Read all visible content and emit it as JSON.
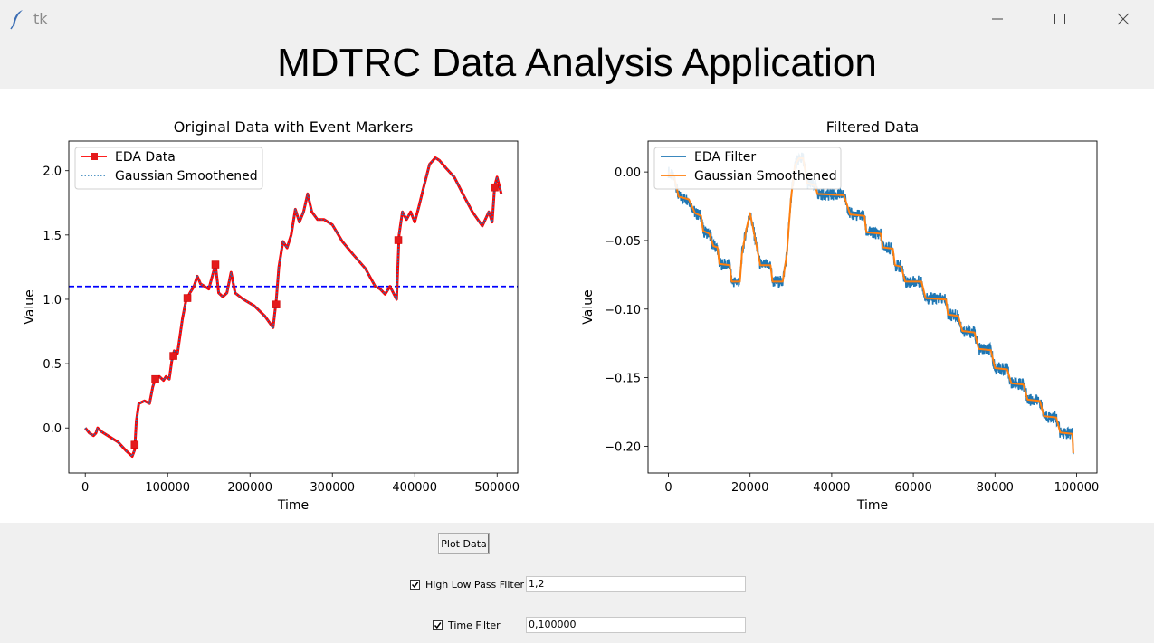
{
  "window": {
    "title": "tk",
    "icon": "feather-icon",
    "controls": [
      "minimize-icon",
      "maximize-icon",
      "close-icon"
    ]
  },
  "app_title": "MDTRC Data Analysis Application",
  "controls": {
    "plot_button": "Plot Data",
    "high_low_filter": {
      "label": "High Low Pass Filter",
      "checked": true,
      "value": "1,2"
    },
    "time_filter": {
      "label": "Time Filter",
      "checked": true,
      "value": "0,100000"
    }
  },
  "chart_data": [
    {
      "type": "line",
      "title": "Original Data with Event Markers",
      "xlabel": "Time",
      "ylabel": "Value",
      "xlim": [
        -20000,
        525000
      ],
      "ylim": [
        -0.35,
        2.23
      ],
      "xticks": [
        0,
        100000,
        200000,
        300000,
        400000,
        500000
      ],
      "xtick_labels": [
        "0",
        "100000",
        "200000",
        "300000",
        "400000",
        "500000"
      ],
      "yticks": [
        0.0,
        0.5,
        1.0,
        1.5,
        2.0
      ],
      "ytick_labels": [
        "0.0",
        "0.5",
        "1.0",
        "1.5",
        "2.0"
      ],
      "legend_position": "upper-left",
      "hline": {
        "y": 1.1,
        "color": "#0000ff",
        "style": "dashed"
      },
      "series": [
        {
          "name": "EDA Data",
          "color": "#ff0000",
          "marker": "square",
          "points": [
            [
              0,
              0.0
            ],
            [
              5000,
              -0.04
            ],
            [
              10000,
              -0.06
            ],
            [
              13000,
              -0.04
            ],
            [
              15000,
              0.0
            ],
            [
              20000,
              -0.03
            ],
            [
              30000,
              -0.07
            ],
            [
              40000,
              -0.11
            ],
            [
              50000,
              -0.18
            ],
            [
              57000,
              -0.22
            ],
            [
              60000,
              -0.17
            ],
            [
              62000,
              0.05
            ],
            [
              65000,
              0.19
            ],
            [
              72000,
              0.21
            ],
            [
              78000,
              0.19
            ],
            [
              82000,
              0.32
            ],
            [
              85000,
              0.38
            ],
            [
              90000,
              0.4
            ],
            [
              95000,
              0.37
            ],
            [
              98000,
              0.4
            ],
            [
              102000,
              0.38
            ],
            [
              105000,
              0.52
            ],
            [
              108000,
              0.6
            ],
            [
              112000,
              0.58
            ],
            [
              118000,
              0.85
            ],
            [
              122000,
              0.98
            ],
            [
              127000,
              1.05
            ],
            [
              132000,
              1.1
            ],
            [
              136000,
              1.18
            ],
            [
              140000,
              1.12
            ],
            [
              145000,
              1.1
            ],
            [
              150000,
              1.08
            ],
            [
              155000,
              1.2
            ],
            [
              158000,
              1.27
            ],
            [
              162000,
              1.05
            ],
            [
              167000,
              1.02
            ],
            [
              172000,
              1.05
            ],
            [
              177000,
              1.21
            ],
            [
              182000,
              1.05
            ],
            [
              192000,
              1.0
            ],
            [
              205000,
              0.95
            ],
            [
              218000,
              0.87
            ],
            [
              228000,
              0.78
            ],
            [
              232000,
              1.0
            ],
            [
              235000,
              1.25
            ],
            [
              240000,
              1.45
            ],
            [
              245000,
              1.4
            ],
            [
              250000,
              1.5
            ],
            [
              255000,
              1.7
            ],
            [
              260000,
              1.6
            ],
            [
              265000,
              1.68
            ],
            [
              270000,
              1.82
            ],
            [
              275000,
              1.68
            ],
            [
              282000,
              1.62
            ],
            [
              290000,
              1.62
            ],
            [
              300000,
              1.58
            ],
            [
              312000,
              1.45
            ],
            [
              325000,
              1.35
            ],
            [
              340000,
              1.24
            ],
            [
              352000,
              1.1
            ],
            [
              358000,
              1.08
            ],
            [
              364000,
              1.04
            ],
            [
              370000,
              1.1
            ],
            [
              378000,
              1.0
            ],
            [
              381000,
              1.5
            ],
            [
              385000,
              1.68
            ],
            [
              390000,
              1.62
            ],
            [
              395000,
              1.68
            ],
            [
              400000,
              1.6
            ],
            [
              405000,
              1.72
            ],
            [
              410000,
              1.85
            ],
            [
              418000,
              2.05
            ],
            [
              425000,
              2.1
            ],
            [
              430000,
              2.08
            ],
            [
              438000,
              2.02
            ],
            [
              448000,
              1.95
            ],
            [
              460000,
              1.8
            ],
            [
              470000,
              1.68
            ],
            [
              482000,
              1.57
            ],
            [
              490000,
              1.68
            ],
            [
              494000,
              1.6
            ],
            [
              497000,
              1.88
            ],
            [
              500000,
              1.95
            ],
            [
              505000,
              1.82
            ]
          ],
          "markers": [
            [
              60000,
              -0.13
            ],
            [
              85000,
              0.38
            ],
            [
              107000,
              0.56
            ],
            [
              124000,
              1.01
            ],
            [
              158000,
              1.27
            ],
            [
              232000,
              0.96
            ],
            [
              380000,
              1.46
            ],
            [
              497000,
              1.87
            ]
          ]
        },
        {
          "name": "Gaussian Smoothened",
          "color": "#1f77b4",
          "style": "dotted"
        }
      ]
    },
    {
      "type": "line",
      "title": "Filtered Data",
      "xlabel": "Time",
      "ylabel": "Value",
      "xlim": [
        -5000,
        105000
      ],
      "ylim": [
        -0.2195,
        0.0225
      ],
      "xticks": [
        0,
        20000,
        40000,
        60000,
        80000,
        100000
      ],
      "xtick_labels": [
        "0",
        "20000",
        "40000",
        "60000",
        "80000",
        "100000"
      ],
      "yticks": [
        0.0,
        -0.05,
        -0.1,
        -0.15,
        -0.2
      ],
      "ytick_labels": [
        "0.00",
        "−0.05",
        "−0.10",
        "−0.15",
        "−0.20"
      ],
      "legend_position": "upper-left",
      "series": [
        {
          "name": "EDA Filter",
          "color": "#1f77b4",
          "points": [
            [
              0,
              0.0
            ],
            [
              1500,
              -0.005
            ],
            [
              2500,
              -0.018
            ],
            [
              5000,
              -0.02
            ],
            [
              6500,
              -0.03
            ],
            [
              8000,
              -0.032
            ],
            [
              8500,
              -0.043
            ],
            [
              10000,
              -0.045
            ],
            [
              11000,
              -0.054
            ],
            [
              12000,
              -0.055
            ],
            [
              12500,
              -0.067
            ],
            [
              15000,
              -0.068
            ],
            [
              15500,
              -0.08
            ],
            [
              17500,
              -0.08
            ],
            [
              18000,
              -0.06
            ],
            [
              19000,
              -0.043
            ],
            [
              20000,
              -0.03
            ],
            [
              21000,
              -0.045
            ],
            [
              22000,
              -0.06
            ],
            [
              22500,
              -0.068
            ],
            [
              25000,
              -0.068
            ],
            [
              25500,
              -0.08
            ],
            [
              28000,
              -0.08
            ],
            [
              29000,
              -0.06
            ],
            [
              30000,
              -0.02
            ],
            [
              31000,
              0.005
            ],
            [
              32000,
              0.01
            ],
            [
              33000,
              0.01
            ],
            [
              34000,
              -0.008
            ],
            [
              36000,
              -0.01
            ],
            [
              36500,
              -0.016
            ],
            [
              43000,
              -0.017
            ],
            [
              44500,
              -0.031
            ],
            [
              48000,
              -0.032
            ],
            [
              48500,
              -0.044
            ],
            [
              52000,
              -0.045
            ],
            [
              52500,
              -0.055
            ],
            [
              55000,
              -0.056
            ],
            [
              55500,
              -0.068
            ],
            [
              57000,
              -0.069
            ],
            [
              58000,
              -0.08
            ],
            [
              62000,
              -0.08
            ],
            [
              63000,
              -0.092
            ],
            [
              68000,
              -0.093
            ],
            [
              68500,
              -0.104
            ],
            [
              71000,
              -0.105
            ],
            [
              72000,
              -0.116
            ],
            [
              75000,
              -0.117
            ],
            [
              76000,
              -0.129
            ],
            [
              79000,
              -0.13
            ],
            [
              80000,
              -0.143
            ],
            [
              83000,
              -0.144
            ],
            [
              84000,
              -0.154
            ],
            [
              87000,
              -0.155
            ],
            [
              88000,
              -0.166
            ],
            [
              91000,
              -0.167
            ],
            [
              92000,
              -0.178
            ],
            [
              95000,
              -0.179
            ],
            [
              96000,
              -0.19
            ],
            [
              99000,
              -0.191
            ],
            [
              99200,
              -0.205
            ]
          ]
        },
        {
          "name": "Gaussian Smoothened",
          "color": "#ff7f0e"
        }
      ]
    }
  ]
}
